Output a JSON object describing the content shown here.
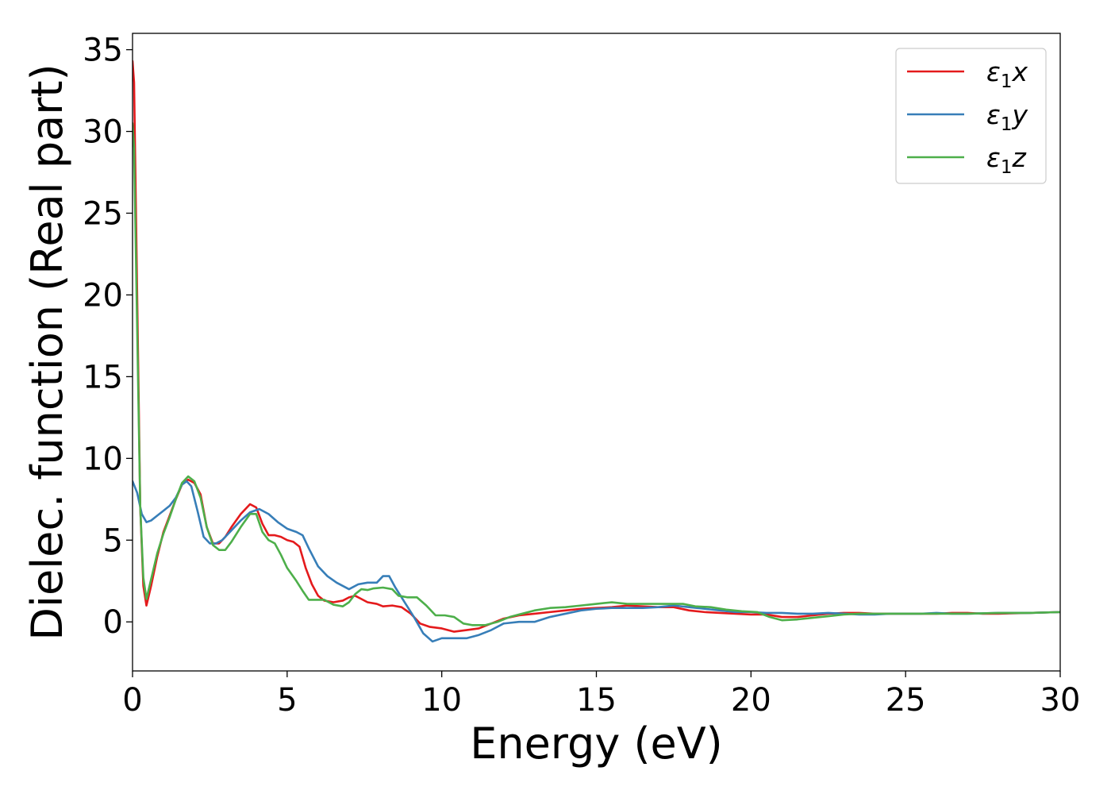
{
  "chart_data": {
    "type": "line",
    "title": "",
    "xlabel": "Energy (eV)",
    "ylabel": "Dielec. function (Real part)",
    "xlim": [
      0,
      30
    ],
    "ylim": [
      -3,
      36
    ],
    "x_ticks": [
      0,
      5,
      10,
      15,
      20,
      25,
      30
    ],
    "y_ticks": [
      0,
      5,
      10,
      15,
      20,
      25,
      30,
      35
    ],
    "grid": false,
    "legend_position": "top-right",
    "series": [
      {
        "name": "ε1x",
        "legend_main": "ε",
        "legend_sub": "1",
        "legend_suffix": "x",
        "color": "#e41a1c",
        "points": [
          [
            0,
            34.3
          ],
          [
            0.05,
            33
          ],
          [
            0.15,
            20
          ],
          [
            0.25,
            7
          ],
          [
            0.35,
            2.2
          ],
          [
            0.45,
            1.0
          ],
          [
            0.6,
            2.2
          ],
          [
            0.8,
            4.0
          ],
          [
            1.0,
            5.5
          ],
          [
            1.2,
            6.5
          ],
          [
            1.4,
            7.5
          ],
          [
            1.6,
            8.4
          ],
          [
            1.8,
            8.7
          ],
          [
            2.0,
            8.5
          ],
          [
            2.2,
            7.8
          ],
          [
            2.4,
            5.8
          ],
          [
            2.6,
            4.8
          ],
          [
            2.8,
            4.8
          ],
          [
            3.0,
            5.2
          ],
          [
            3.2,
            5.8
          ],
          [
            3.5,
            6.6
          ],
          [
            3.8,
            7.2
          ],
          [
            4.0,
            7.0
          ],
          [
            4.2,
            6.0
          ],
          [
            4.4,
            5.3
          ],
          [
            4.6,
            5.3
          ],
          [
            4.8,
            5.2
          ],
          [
            5.0,
            5.0
          ],
          [
            5.2,
            4.9
          ],
          [
            5.4,
            4.6
          ],
          [
            5.6,
            3.3
          ],
          [
            5.8,
            2.3
          ],
          [
            6.0,
            1.6
          ],
          [
            6.2,
            1.3
          ],
          [
            6.5,
            1.2
          ],
          [
            6.8,
            1.3
          ],
          [
            7.0,
            1.5
          ],
          [
            7.2,
            1.6
          ],
          [
            7.4,
            1.4
          ],
          [
            7.6,
            1.2
          ],
          [
            7.9,
            1.1
          ],
          [
            8.1,
            0.95
          ],
          [
            8.4,
            1.0
          ],
          [
            8.7,
            0.9
          ],
          [
            9.0,
            0.5
          ],
          [
            9.3,
            -0.1
          ],
          [
            9.6,
            -0.3
          ],
          [
            10.0,
            -0.4
          ],
          [
            10.4,
            -0.6
          ],
          [
            10.8,
            -0.5
          ],
          [
            11.2,
            -0.4
          ],
          [
            11.6,
            -0.1
          ],
          [
            12.0,
            0.2
          ],
          [
            12.5,
            0.4
          ],
          [
            13.0,
            0.5
          ],
          [
            13.5,
            0.6
          ],
          [
            14.0,
            0.7
          ],
          [
            14.5,
            0.8
          ],
          [
            15.0,
            0.85
          ],
          [
            15.5,
            0.9
          ],
          [
            16.0,
            1.0
          ],
          [
            16.5,
            0.95
          ],
          [
            17.0,
            0.9
          ],
          [
            17.5,
            0.9
          ],
          [
            18.0,
            0.7
          ],
          [
            18.5,
            0.6
          ],
          [
            19.0,
            0.55
          ],
          [
            19.5,
            0.5
          ],
          [
            20.0,
            0.45
          ],
          [
            20.5,
            0.45
          ],
          [
            21.0,
            0.3
          ],
          [
            21.5,
            0.3
          ],
          [
            22.0,
            0.4
          ],
          [
            22.5,
            0.5
          ],
          [
            23.0,
            0.55
          ],
          [
            23.5,
            0.55
          ],
          [
            24.0,
            0.5
          ],
          [
            24.5,
            0.5
          ],
          [
            25.0,
            0.5
          ],
          [
            25.5,
            0.5
          ],
          [
            26.0,
            0.5
          ],
          [
            26.5,
            0.55
          ],
          [
            27.0,
            0.55
          ],
          [
            27.5,
            0.5
          ],
          [
            28.0,
            0.5
          ],
          [
            29.0,
            0.55
          ],
          [
            30.0,
            0.6
          ]
        ]
      },
      {
        "name": "ε1y",
        "legend_main": "ε",
        "legend_sub": "1",
        "legend_suffix": "y",
        "color": "#377eb8",
        "points": [
          [
            0,
            8.6
          ],
          [
            0.15,
            7.9
          ],
          [
            0.3,
            6.6
          ],
          [
            0.45,
            6.1
          ],
          [
            0.6,
            6.2
          ],
          [
            0.8,
            6.5
          ],
          [
            1.0,
            6.8
          ],
          [
            1.2,
            7.1
          ],
          [
            1.4,
            7.6
          ],
          [
            1.6,
            8.4
          ],
          [
            1.75,
            8.6
          ],
          [
            1.9,
            8.3
          ],
          [
            2.1,
            6.8
          ],
          [
            2.3,
            5.2
          ],
          [
            2.5,
            4.8
          ],
          [
            2.7,
            4.8
          ],
          [
            2.9,
            5.0
          ],
          [
            3.2,
            5.6
          ],
          [
            3.5,
            6.2
          ],
          [
            3.8,
            6.7
          ],
          [
            4.1,
            6.9
          ],
          [
            4.4,
            6.6
          ],
          [
            4.7,
            6.1
          ],
          [
            5.0,
            5.7
          ],
          [
            5.3,
            5.5
          ],
          [
            5.5,
            5.3
          ],
          [
            5.7,
            4.5
          ],
          [
            6.0,
            3.4
          ],
          [
            6.3,
            2.8
          ],
          [
            6.6,
            2.4
          ],
          [
            7.0,
            2.0
          ],
          [
            7.3,
            2.3
          ],
          [
            7.6,
            2.4
          ],
          [
            7.9,
            2.4
          ],
          [
            8.1,
            2.8
          ],
          [
            8.3,
            2.8
          ],
          [
            8.5,
            2.1
          ],
          [
            8.8,
            1.2
          ],
          [
            9.1,
            0.3
          ],
          [
            9.4,
            -0.7
          ],
          [
            9.7,
            -1.2
          ],
          [
            10.0,
            -1.0
          ],
          [
            10.4,
            -1.0
          ],
          [
            10.8,
            -1.0
          ],
          [
            11.2,
            -0.8
          ],
          [
            11.6,
            -0.5
          ],
          [
            12.0,
            -0.1
          ],
          [
            12.5,
            0.0
          ],
          [
            13.0,
            0.0
          ],
          [
            13.5,
            0.3
          ],
          [
            14.0,
            0.5
          ],
          [
            14.5,
            0.7
          ],
          [
            15.0,
            0.8
          ],
          [
            15.5,
            0.85
          ],
          [
            16.0,
            0.85
          ],
          [
            16.5,
            0.85
          ],
          [
            17.0,
            0.9
          ],
          [
            17.5,
            1.0
          ],
          [
            18.0,
            0.9
          ],
          [
            18.5,
            0.8
          ],
          [
            19.0,
            0.7
          ],
          [
            19.5,
            0.6
          ],
          [
            20.0,
            0.6
          ],
          [
            20.5,
            0.55
          ],
          [
            21.0,
            0.55
          ],
          [
            21.5,
            0.5
          ],
          [
            22.0,
            0.5
          ],
          [
            22.5,
            0.55
          ],
          [
            23.0,
            0.5
          ],
          [
            23.5,
            0.45
          ],
          [
            24.0,
            0.45
          ],
          [
            24.5,
            0.5
          ],
          [
            25.0,
            0.5
          ],
          [
            25.5,
            0.5
          ],
          [
            26.0,
            0.55
          ],
          [
            26.5,
            0.5
          ],
          [
            27.0,
            0.5
          ],
          [
            28.0,
            0.55
          ],
          [
            29.0,
            0.55
          ],
          [
            30.0,
            0.6
          ]
        ]
      },
      {
        "name": "ε1z",
        "legend_main": "ε",
        "legend_sub": "1",
        "legend_suffix": "z",
        "color": "#4daf4a",
        "points": [
          [
            0,
            30.5
          ],
          [
            0.05,
            29
          ],
          [
            0.15,
            18
          ],
          [
            0.25,
            7
          ],
          [
            0.35,
            2.7
          ],
          [
            0.45,
            1.4
          ],
          [
            0.6,
            2.6
          ],
          [
            0.8,
            4.2
          ],
          [
            1.0,
            5.4
          ],
          [
            1.2,
            6.4
          ],
          [
            1.4,
            7.5
          ],
          [
            1.6,
            8.5
          ],
          [
            1.8,
            8.9
          ],
          [
            2.0,
            8.6
          ],
          [
            2.2,
            7.6
          ],
          [
            2.4,
            5.8
          ],
          [
            2.6,
            4.7
          ],
          [
            2.8,
            4.4
          ],
          [
            3.0,
            4.4
          ],
          [
            3.2,
            4.9
          ],
          [
            3.5,
            5.8
          ],
          [
            3.8,
            6.6
          ],
          [
            4.0,
            6.6
          ],
          [
            4.2,
            5.5
          ],
          [
            4.4,
            5.0
          ],
          [
            4.6,
            4.8
          ],
          [
            4.8,
            4.1
          ],
          [
            5.0,
            3.3
          ],
          [
            5.3,
            2.5
          ],
          [
            5.5,
            1.9
          ],
          [
            5.7,
            1.35
          ],
          [
            6.0,
            1.35
          ],
          [
            6.2,
            1.35
          ],
          [
            6.5,
            1.05
          ],
          [
            6.8,
            0.95
          ],
          [
            7.0,
            1.2
          ],
          [
            7.2,
            1.7
          ],
          [
            7.4,
            2.0
          ],
          [
            7.6,
            1.95
          ],
          [
            7.8,
            2.05
          ],
          [
            8.1,
            2.1
          ],
          [
            8.4,
            2.0
          ],
          [
            8.6,
            1.6
          ],
          [
            8.9,
            1.5
          ],
          [
            9.2,
            1.5
          ],
          [
            9.5,
            1.0
          ],
          [
            9.8,
            0.4
          ],
          [
            10.1,
            0.4
          ],
          [
            10.4,
            0.3
          ],
          [
            10.7,
            -0.1
          ],
          [
            11.0,
            -0.2
          ],
          [
            11.4,
            -0.2
          ],
          [
            11.8,
            0.0
          ],
          [
            12.2,
            0.3
          ],
          [
            12.6,
            0.5
          ],
          [
            13.0,
            0.7
          ],
          [
            13.5,
            0.85
          ],
          [
            14.0,
            0.9
          ],
          [
            14.5,
            1.0
          ],
          [
            15.0,
            1.1
          ],
          [
            15.5,
            1.2
          ],
          [
            16.0,
            1.1
          ],
          [
            16.5,
            1.1
          ],
          [
            17.0,
            1.1
          ],
          [
            17.5,
            1.1
          ],
          [
            17.8,
            1.1
          ],
          [
            18.2,
            0.95
          ],
          [
            18.7,
            0.9
          ],
          [
            19.2,
            0.75
          ],
          [
            19.7,
            0.65
          ],
          [
            20.2,
            0.6
          ],
          [
            20.6,
            0.3
          ],
          [
            21.0,
            0.1
          ],
          [
            21.5,
            0.15
          ],
          [
            22.0,
            0.25
          ],
          [
            22.5,
            0.35
          ],
          [
            23.0,
            0.45
          ],
          [
            23.5,
            0.5
          ],
          [
            24.0,
            0.5
          ],
          [
            24.5,
            0.5
          ],
          [
            25.0,
            0.5
          ],
          [
            25.5,
            0.5
          ],
          [
            26.0,
            0.5
          ],
          [
            27.0,
            0.5
          ],
          [
            28.0,
            0.55
          ],
          [
            29.0,
            0.55
          ],
          [
            30.0,
            0.6
          ]
        ]
      }
    ]
  }
}
